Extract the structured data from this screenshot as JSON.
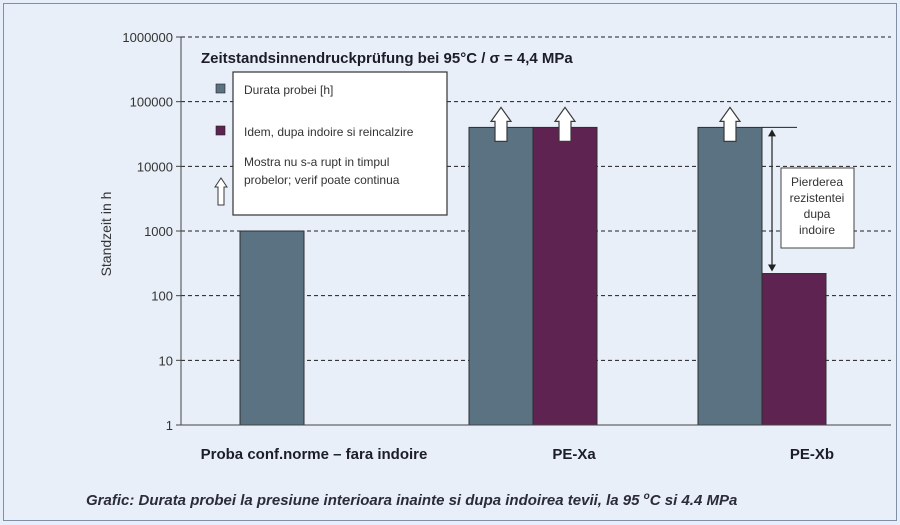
{
  "chart_data": {
    "type": "bar",
    "title": "Zeitstandsinnendruckprüfung bei 95°C / σ = 4,4 MPa",
    "ylabel": "Standzeit in h",
    "yscale": "log",
    "ylim": [
      1,
      1000000
    ],
    "yticks": [
      "1",
      "10",
      "100",
      "1000",
      "10000",
      "100000",
      "1000000"
    ],
    "grid": "horizontal dashed",
    "categories": [
      "Proba conf.norme – fara indoire",
      "PE-Xa",
      "PE-Xb"
    ],
    "series": [
      {
        "name": "Durata probei  [h]",
        "color": "#5a7282",
        "values": [
          1000,
          40000,
          40000
        ]
      },
      {
        "name": "Idem, dupa indoire si reincalzire",
        "color": "#5e2350",
        "values": [
          null,
          40000,
          220
        ]
      }
    ],
    "not_failed_marker": "Mostra nu s-a rupt in timpul probelor; verif poate continua",
    "arrows_on": [
      {
        "category": 1,
        "series": 0
      },
      {
        "category": 1,
        "series": 1
      },
      {
        "category": 2,
        "series": 0
      }
    ],
    "legend_position": "top-left",
    "annotation": {
      "text": [
        "Pierderea",
        "rezistentei",
        "dupa",
        "indoire"
      ],
      "category": 2,
      "from": 40000,
      "to": 220
    }
  },
  "caption": "Grafic:  Durata probei la presiune interioara inainte si dupa indoirea tevii, la 95 ",
  "caption_sup": "o",
  "caption_tail": "C si 4.4 MPa"
}
